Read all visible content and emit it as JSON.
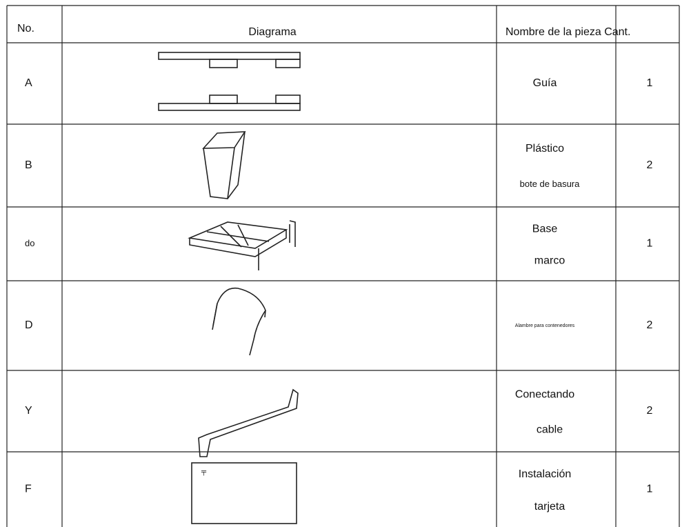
{
  "table": {
    "header": [
      "No.",
      "Diagrama",
      "Nombre de la pieza Cant."
    ],
    "rows": [
      {
        "no": "A",
        "name": [
          "Guía"
        ],
        "qty": 1
      },
      {
        "no": "B",
        "name": [
          "Plástico",
          "bote de basura"
        ],
        "qty": 2
      },
      {
        "no": "do",
        "name": [
          "Base",
          "marco"
        ],
        "qty": 1
      },
      {
        "no": "D",
        "name": [
          "Alambre para contenedores"
        ],
        "qty": 2
      },
      {
        "no": "Y",
        "name": [
          "Conectando",
          "cable"
        ],
        "qty": 2
      },
      {
        "no": "F",
        "name": [
          "Instalación",
          "tarjeta"
        ],
        "qty": 1
      }
    ]
  }
}
